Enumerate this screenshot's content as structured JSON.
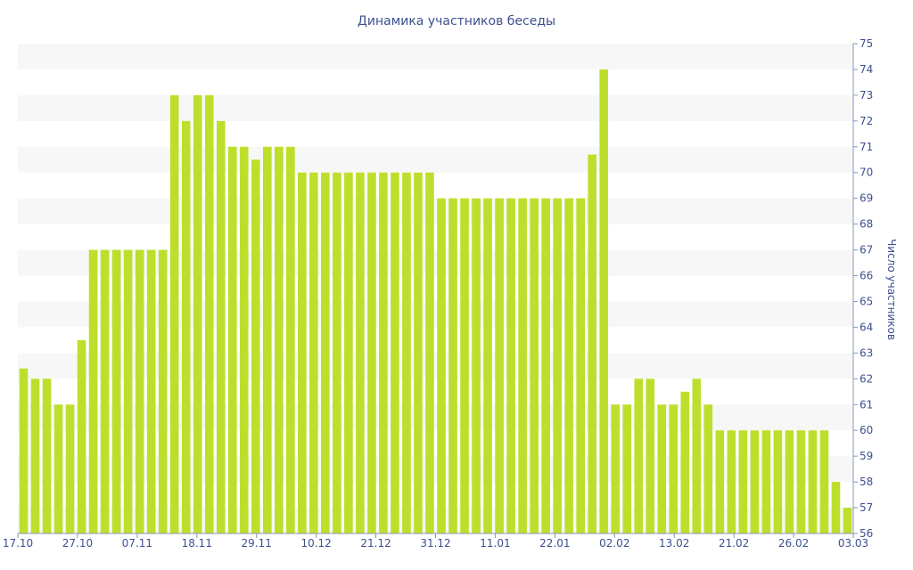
{
  "chart_data": {
    "type": "bar",
    "title": "Динамика участников беседы",
    "ylabel": "Число участников",
    "ylim": [
      56,
      75
    ],
    "y_ticks": [
      56,
      57,
      58,
      59,
      60,
      61,
      62,
      63,
      64,
      65,
      66,
      67,
      68,
      69,
      70,
      71,
      72,
      73,
      74,
      75
    ],
    "x_tick_labels": [
      "17.10",
      "27.10",
      "07.11",
      "18.11",
      "29.11",
      "10.12",
      "21.12",
      "31.12",
      "11.01",
      "22.01",
      "02.02",
      "13.02",
      "21.02",
      "26.02",
      "03.03"
    ],
    "grid": "alternating horizontal bands",
    "y_axis_position": "right",
    "bar_color": "#bddf2c",
    "band_color": "#f7f7f7",
    "values": [
      62.4,
      62,
      62,
      61,
      61,
      63.5,
      67,
      67,
      67,
      67,
      67,
      67,
      67,
      73,
      72,
      73,
      73,
      72,
      71,
      71,
      70.5,
      71,
      71,
      71,
      70,
      70,
      70,
      70,
      70,
      70,
      70,
      70,
      70,
      70,
      70,
      70,
      69,
      69,
      69,
      69,
      69,
      69,
      69,
      69,
      69,
      69,
      69,
      69,
      69,
      70.7,
      74,
      61,
      61,
      62,
      62,
      61,
      61,
      61.5,
      62,
      61,
      60,
      60,
      60,
      60,
      60,
      60,
      60,
      60,
      60,
      60,
      58,
      57
    ]
  }
}
